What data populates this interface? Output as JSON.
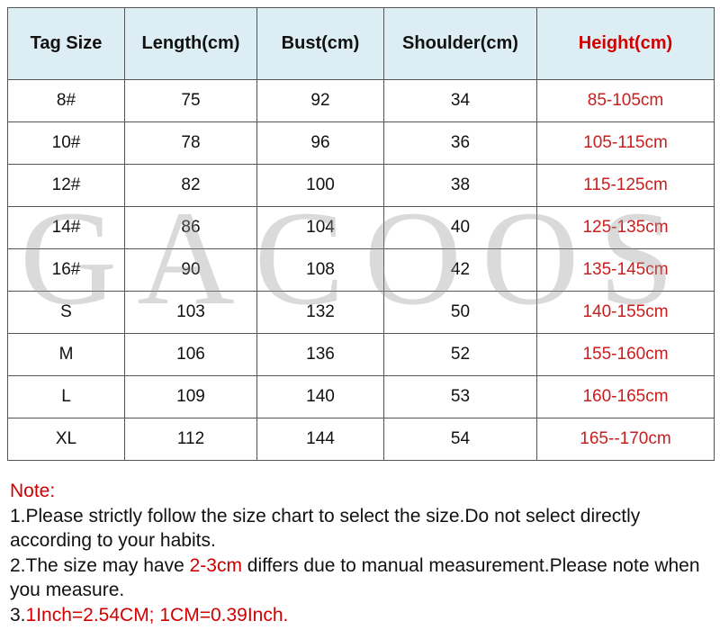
{
  "table": {
    "headers": [
      "Tag Size",
      "Length(cm)",
      "Bust(cm)",
      "Shoulder(cm)",
      "Height(cm)"
    ],
    "rows": [
      [
        "8#",
        "75",
        "92",
        "34",
        "85-105cm"
      ],
      [
        "10#",
        "78",
        "96",
        "36",
        "105-115cm"
      ],
      [
        "12#",
        "82",
        "100",
        "38",
        "115-125cm"
      ],
      [
        "14#",
        "86",
        "104",
        "40",
        "125-135cm"
      ],
      [
        "16#",
        "90",
        "108",
        "42",
        "135-145cm"
      ],
      [
        "S",
        "103",
        "132",
        "50",
        "140-155cm"
      ],
      [
        "M",
        "106",
        "136",
        "52",
        "155-160cm"
      ],
      [
        "L",
        "109",
        "140",
        "53",
        "160-165cm"
      ],
      [
        "XL",
        "112",
        "144",
        "54",
        "165--170cm"
      ]
    ]
  },
  "watermark": "GACOOS",
  "notes": {
    "title": "Note:",
    "line1": "1.Please strictly follow the size chart to select the size.Do not select directly according to your habits.",
    "line2_prefix": "2.The size may have ",
    "line2_highlight": "2-3cm",
    "line2_suffix": " differs due to manual measurement.Please note when you measure.",
    "line3_prefix": "3.",
    "line3_highlight": "1Inch=2.54CM; 1CM=0.39Inch."
  },
  "colors": {
    "header_bg": "#dcedf4",
    "accent_red": "#d00000",
    "border": "#555555"
  }
}
